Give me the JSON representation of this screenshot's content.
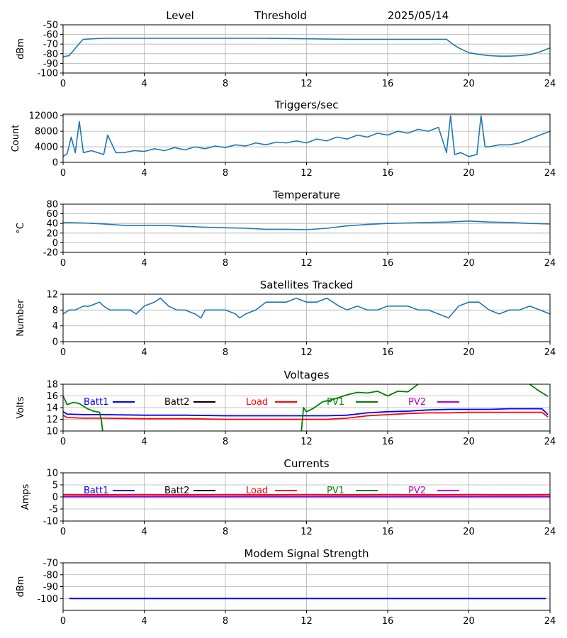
{
  "header": {
    "level_label": "Level",
    "threshold_label": "Threshold",
    "date": "2025/05/14"
  },
  "colors": {
    "default_line": "#1f77b4",
    "grid": "#b0b0b0",
    "batt1": "#0000ff",
    "batt2": "#000000",
    "load": "#ff0000",
    "pv1": "#008000",
    "pv2": "#bf00bf"
  },
  "chart_data": [
    {
      "id": "level",
      "type": "line",
      "title": "",
      "ylabel": "dBm",
      "xlim": [
        0,
        24
      ],
      "ylim": [
        -100,
        -50
      ],
      "xticks": [
        0,
        4,
        8,
        12,
        16,
        20,
        24
      ],
      "yticks": [
        -100,
        -90,
        -80,
        -70,
        -60,
        -50
      ],
      "grid": true,
      "series": [
        {
          "color_key": "default_line",
          "x": [
            0,
            0.3,
            0.5,
            0.7,
            0.9,
            1.0,
            2.0,
            4.0,
            6.0,
            8.0,
            10.0,
            12.0,
            14.0,
            16.0,
            18.0,
            18.9,
            19.2,
            19.5,
            19.8,
            20.0,
            20.3,
            20.6,
            21.0,
            21.5,
            22.0,
            22.5,
            23.0,
            23.5,
            24.0
          ],
          "y": [
            -83,
            -82,
            -77,
            -72,
            -67,
            -65,
            -64,
            -64,
            -64,
            -64,
            -64,
            -64.5,
            -65,
            -65,
            -65,
            -65,
            -70,
            -74,
            -77,
            -79,
            -80,
            -81,
            -82,
            -82.5,
            -82.5,
            -82,
            -81,
            -78,
            -74
          ]
        }
      ]
    },
    {
      "id": "triggers",
      "type": "line",
      "title": "Triggers/sec",
      "ylabel": "Count",
      "xlim": [
        0,
        24
      ],
      "ylim": [
        0,
        12400
      ],
      "xticks": [
        0,
        4,
        8,
        12,
        16,
        20,
        24
      ],
      "yticks": [
        0,
        4000,
        8000,
        12000
      ],
      "grid": true,
      "series": [
        {
          "color_key": "default_line",
          "x": [
            0,
            0.2,
            0.4,
            0.6,
            0.8,
            1.0,
            1.4,
            2.0,
            2.2,
            2.6,
            3.0,
            3.5,
            4.0,
            4.5,
            5.0,
            5.5,
            6.0,
            6.5,
            7.0,
            7.5,
            8.0,
            8.5,
            9.0,
            9.5,
            10.0,
            10.5,
            11.0,
            11.5,
            12.0,
            12.5,
            13.0,
            13.5,
            14.0,
            14.5,
            15.0,
            15.5,
            16.0,
            16.5,
            17.0,
            17.5,
            18.0,
            18.5,
            18.9,
            19.1,
            19.3,
            19.6,
            20.0,
            20.4,
            20.6,
            20.8,
            21.0,
            21.5,
            22.0,
            22.5,
            23.0,
            23.5,
            24.0
          ],
          "y": [
            1500,
            2200,
            6500,
            2500,
            10500,
            2500,
            3000,
            2000,
            7000,
            2500,
            2500,
            3000,
            2800,
            3500,
            3000,
            3800,
            3200,
            4000,
            3500,
            4200,
            3800,
            4500,
            4200,
            5000,
            4500,
            5200,
            5000,
            5500,
            5000,
            6000,
            5500,
            6500,
            6000,
            7000,
            6500,
            7500,
            7000,
            8000,
            7500,
            8500,
            8000,
            9000,
            2500,
            12000,
            2000,
            2500,
            1500,
            2000,
            12000,
            4000,
            4000,
            4500,
            4500,
            5000,
            6000,
            7000,
            8000
          ]
        }
      ]
    },
    {
      "id": "temperature",
      "type": "line",
      "title": "Temperature",
      "ylabel": "°C",
      "xlim": [
        0,
        24
      ],
      "ylim": [
        -20,
        80
      ],
      "xticks": [
        0,
        4,
        8,
        12,
        16,
        20,
        24
      ],
      "yticks": [
        -20,
        0,
        20,
        40,
        60,
        80
      ],
      "grid": true,
      "series": [
        {
          "color_key": "default_line",
          "x": [
            0,
            1,
            2,
            3,
            4,
            5,
            6,
            7,
            8,
            9,
            10,
            11,
            12,
            13,
            14,
            15,
            16,
            17,
            18,
            19,
            20,
            21,
            22,
            23,
            24
          ],
          "y": [
            42,
            41,
            39,
            36,
            36,
            36,
            34,
            32,
            31,
            30,
            28,
            28,
            27,
            30,
            35,
            38,
            40,
            41,
            42,
            43,
            45,
            43,
            42,
            40,
            39
          ]
        }
      ]
    },
    {
      "id": "satellites",
      "type": "line",
      "title": "Satellites Tracked",
      "ylabel": "Number",
      "xlim": [
        0,
        24
      ],
      "ylim": [
        0,
        12
      ],
      "xticks": [
        0,
        4,
        8,
        12,
        16,
        20,
        24
      ],
      "yticks": [
        0,
        4,
        8,
        12
      ],
      "grid": true,
      "series": [
        {
          "color_key": "default_line",
          "x": [
            0,
            0.3,
            0.6,
            1.0,
            1.3,
            1.8,
            2.0,
            2.3,
            2.8,
            3.3,
            3.6,
            4.0,
            4.5,
            4.8,
            5.2,
            5.6,
            6.0,
            6.5,
            6.8,
            7.0,
            7.5,
            8.0,
            8.5,
            8.7,
            9.0,
            9.5,
            10.0,
            10.5,
            11.0,
            11.5,
            12.0,
            12.5,
            13.0,
            13.3,
            13.6,
            14.0,
            14.5,
            15.0,
            15.5,
            16.0,
            16.5,
            17.0,
            17.5,
            18.0,
            18.5,
            19.0,
            19.5,
            20.0,
            20.5,
            21.0,
            21.5,
            22.0,
            22.5,
            23.0,
            23.5,
            24.0
          ],
          "y": [
            7,
            8,
            8,
            9,
            9,
            10,
            9,
            8,
            8,
            8,
            7,
            9,
            10,
            11,
            9,
            8,
            8,
            7,
            6,
            8,
            8,
            8,
            7,
            6,
            7,
            8,
            10,
            10,
            10,
            11,
            10,
            10,
            11,
            10,
            9,
            8,
            9,
            8,
            8,
            9,
            9,
            9,
            8,
            8,
            7,
            6,
            9,
            10,
            10,
            8,
            7,
            8,
            8,
            9,
            8,
            7
          ]
        }
      ]
    },
    {
      "id": "voltages",
      "type": "line",
      "title": "Voltages",
      "ylabel": "Volts",
      "xlim": [
        0,
        24
      ],
      "ylim": [
        10,
        18
      ],
      "xticks": [
        0,
        4,
        8,
        12,
        16,
        20,
        24
      ],
      "yticks": [
        10,
        12,
        14,
        16,
        18
      ],
      "grid": true,
      "legend": [
        "Batt1",
        "Batt2",
        "Load",
        "PV1",
        "PV2"
      ],
      "series": [
        {
          "name": "Batt1",
          "color_key": "batt1",
          "x": [
            0,
            0.2,
            1,
            2,
            4,
            6,
            8,
            10,
            12,
            13,
            14,
            15,
            16,
            17,
            18,
            19,
            20,
            21,
            22,
            23,
            23.6,
            23.9
          ],
          "y": [
            13.3,
            12.9,
            12.8,
            12.8,
            12.7,
            12.7,
            12.6,
            12.6,
            12.6,
            12.6,
            12.7,
            13.1,
            13.3,
            13.4,
            13.6,
            13.7,
            13.7,
            13.7,
            13.8,
            13.8,
            13.8,
            12.8
          ]
        },
        {
          "name": "Load",
          "color_key": "load",
          "x": [
            0,
            0.2,
            1,
            2,
            4,
            6,
            8,
            10,
            12,
            13,
            14,
            15,
            16,
            17,
            18,
            19,
            20,
            21,
            22,
            23,
            23.6,
            23.9
          ],
          "y": [
            12.7,
            12.3,
            12.2,
            12.2,
            12.1,
            12.1,
            12.0,
            12.0,
            12.0,
            12.0,
            12.2,
            12.6,
            12.8,
            13.0,
            13.1,
            13.1,
            13.2,
            13.2,
            13.2,
            13.2,
            13.2,
            12.4
          ]
        },
        {
          "name": "PV1",
          "color_key": "pv1",
          "x": [
            0,
            0.2,
            0.5,
            0.8,
            1.2,
            1.5,
            1.8,
            1.9,
            1.95
          ],
          "y": [
            16.0,
            14.5,
            14.9,
            14.7,
            13.8,
            13.4,
            13.2,
            11.5,
            10.0
          ]
        },
        {
          "name": "PV1",
          "color_key": "pv1",
          "x": [
            11.75,
            11.85,
            12.0,
            12.3,
            12.8,
            13.3,
            14.0,
            14.5,
            15.0,
            15.5,
            16.0,
            16.5,
            17.0,
            17.5
          ],
          "y": [
            10.0,
            14.0,
            13.3,
            13.8,
            15.0,
            15.4,
            16.2,
            16.6,
            16.5,
            16.8,
            16.0,
            16.8,
            16.7,
            18.0
          ]
        },
        {
          "name": "PV1",
          "color_key": "pv1",
          "x": [
            23.0,
            23.4,
            23.9
          ],
          "y": [
            18.0,
            17.0,
            15.9
          ]
        }
      ]
    },
    {
      "id": "currents",
      "type": "line",
      "title": "Currents",
      "ylabel": "Amps",
      "xlim": [
        0,
        24
      ],
      "ylim": [
        -10,
        10
      ],
      "xticks": [
        0,
        4,
        8,
        12,
        16,
        20,
        24
      ],
      "yticks": [
        -10,
        -5,
        0,
        5,
        10
      ],
      "grid": true,
      "legend": [
        "Batt1",
        "Batt2",
        "Load",
        "PV1",
        "PV2"
      ],
      "series": [
        {
          "name": "Batt1",
          "color_key": "batt1",
          "x": [
            0,
            24
          ],
          "y": [
            0.1,
            0.1
          ]
        },
        {
          "name": "PV2",
          "color_key": "pv2",
          "x": [
            0,
            24
          ],
          "y": [
            0.3,
            0.3
          ]
        },
        {
          "name": "Load",
          "color_key": "load",
          "x": [
            0,
            2,
            4,
            6,
            8,
            10,
            12,
            14,
            16,
            18,
            20,
            22,
            24
          ],
          "y": [
            1.0,
            0.9,
            1.0,
            0.9,
            1.0,
            0.9,
            1.0,
            0.9,
            1.0,
            0.9,
            1.0,
            0.9,
            1.0
          ]
        }
      ]
    },
    {
      "id": "modem",
      "type": "line",
      "title": "Modem Signal Strength",
      "ylabel": "dBm",
      "xlim": [
        0,
        24
      ],
      "ylim": [
        -110,
        -70
      ],
      "xticks": [
        0,
        4,
        8,
        12,
        16,
        20,
        24
      ],
      "yticks": [
        -100,
        -90,
        -80,
        -70
      ],
      "grid": true,
      "series": [
        {
          "color_key": "batt1",
          "x": [
            0.3,
            23.8
          ],
          "y": [
            -100,
            -100
          ]
        }
      ]
    }
  ]
}
